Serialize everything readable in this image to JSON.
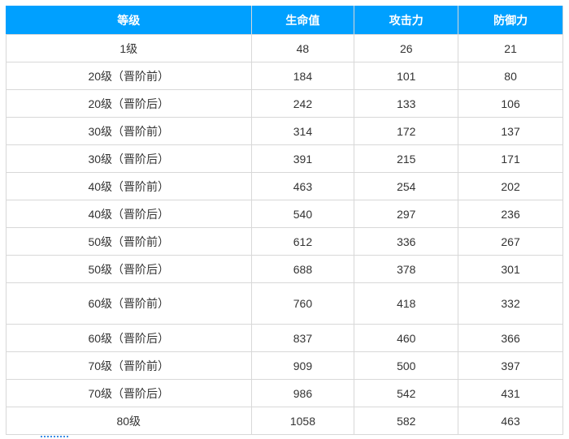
{
  "headers": [
    "等级",
    "生命值",
    "攻击力",
    "防御力"
  ],
  "rows": [
    [
      "1级",
      "48",
      "26",
      "21"
    ],
    [
      "20级（晋阶前）",
      "184",
      "101",
      "80"
    ],
    [
      "20级（晋阶后）",
      "242",
      "133",
      "106"
    ],
    [
      "30级（晋阶前）",
      "314",
      "172",
      "137"
    ],
    [
      "30级（晋阶后）",
      "391",
      "215",
      "171"
    ],
    [
      "40级（晋阶前）",
      "463",
      "254",
      "202"
    ],
    [
      "40级（晋阶后）",
      "540",
      "297",
      "236"
    ],
    [
      "50级（晋阶前）",
      "612",
      "336",
      "267"
    ],
    [
      "50级（晋阶后）",
      "688",
      "378",
      "301"
    ],
    [
      "60级（晋阶前）",
      "760",
      "418",
      "332"
    ],
    [
      "60级（晋阶后）",
      "837",
      "460",
      "366"
    ],
    [
      "70级（晋阶前）",
      "909",
      "500",
      "397"
    ],
    [
      "70级（晋阶后）",
      "986",
      "542",
      "431"
    ],
    [
      "80级",
      "1058",
      "582",
      "463"
    ]
  ],
  "colors": {
    "header_bg": "#00a0ff"
  }
}
